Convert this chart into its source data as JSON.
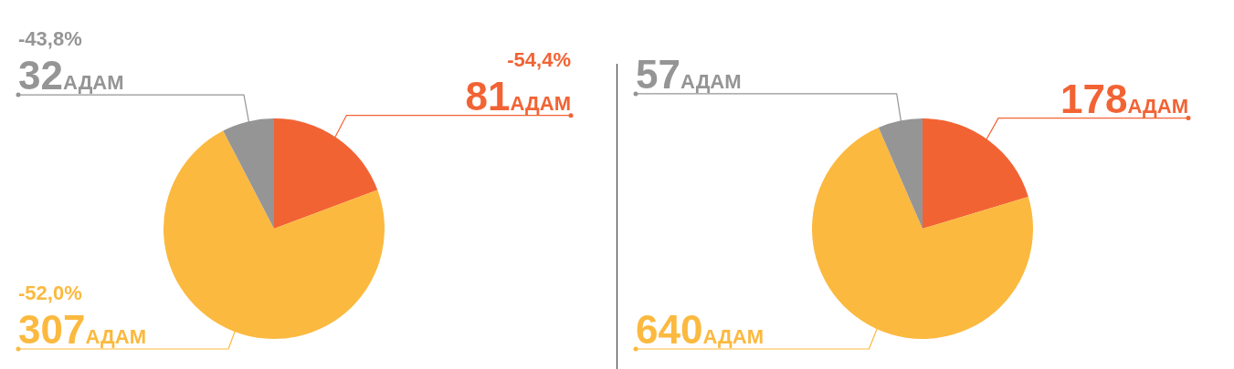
{
  "chart_data": [
    {
      "type": "pie",
      "categories": [
        null,
        null,
        null
      ],
      "values": [
        81,
        307,
        32
      ],
      "colors": [
        "#f26334",
        "#fbb93f",
        "#959595"
      ],
      "value_labels": [
        "81АДАМ",
        "307АДАМ",
        "32АДАМ"
      ],
      "annotations": [
        "-54,4%",
        "-52,0%",
        "-43,8%"
      ]
    },
    {
      "type": "pie",
      "categories": [
        null,
        null,
        null
      ],
      "values": [
        178,
        640,
        57
      ],
      "colors": [
        "#f26334",
        "#fbb93f",
        "#959595"
      ],
      "value_labels": [
        "178АДАМ",
        "640АДАМ",
        "57АДАМ"
      ]
    }
  ]
}
